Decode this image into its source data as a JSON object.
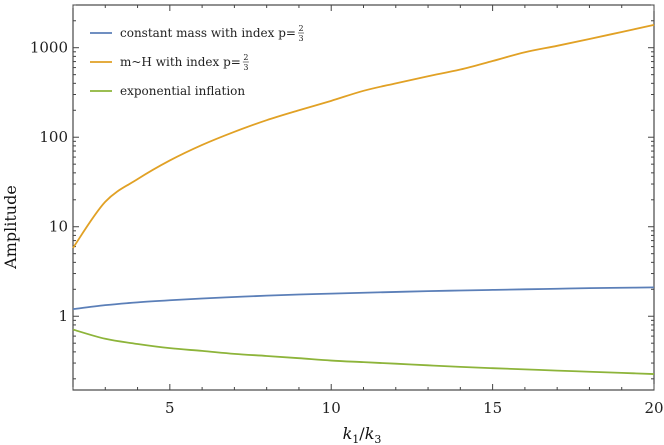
{
  "chart_data": {
    "type": "line",
    "xlabel": "k1/k3",
    "xlabel_parts": {
      "main": "k",
      "sub1": "1",
      "slash": "/",
      "main2": "k",
      "sub2": "3"
    },
    "ylabel": "Amplitude",
    "xlim": [
      2,
      20
    ],
    "ylim": [
      0.15,
      3000
    ],
    "yscale": "log",
    "x_ticks": [
      5,
      10,
      15,
      20
    ],
    "x_tick_labels": [
      "5",
      "10",
      "15",
      "20"
    ],
    "y_ticks": [
      1,
      10,
      100,
      1000
    ],
    "y_tick_labels": [
      "1",
      "10",
      "100",
      "1000"
    ],
    "grid": false,
    "legend_position": "top-left",
    "series": [
      {
        "name": "constant mass with index p=",
        "name_fraction": {
          "num": "2",
          "den": "3"
        },
        "color": "#5b7fb8",
        "x": [
          2,
          3,
          4,
          5,
          6,
          7,
          8,
          9,
          10,
          11,
          12,
          13,
          14,
          15,
          16,
          17,
          18,
          19,
          20
        ],
        "y": [
          1.2,
          1.33,
          1.43,
          1.51,
          1.58,
          1.64,
          1.7,
          1.75,
          1.79,
          1.83,
          1.87,
          1.91,
          1.94,
          1.97,
          2.0,
          2.03,
          2.06,
          2.08,
          2.1
        ]
      },
      {
        "name": "m~H with index p=",
        "name_fraction": {
          "num": "2",
          "den": "3"
        },
        "color": "#e1a125",
        "x": [
          2,
          3,
          4,
          5,
          6,
          7,
          8,
          9,
          10,
          11,
          12,
          13,
          14,
          15,
          16,
          17,
          18,
          19,
          20
        ],
        "y": [
          5.8,
          19,
          34,
          55,
          82,
          115,
          155,
          200,
          255,
          330,
          400,
          480,
          570,
          710,
          890,
          1050,
          1250,
          1500,
          1800
        ]
      },
      {
        "name": "exponential inflation",
        "color": "#8db43a",
        "x": [
          2,
          3,
          4,
          5,
          6,
          7,
          8,
          9,
          10,
          11,
          12,
          13,
          14,
          15,
          16,
          17,
          18,
          19,
          20
        ],
        "y": [
          0.71,
          0.56,
          0.49,
          0.44,
          0.41,
          0.38,
          0.36,
          0.34,
          0.32,
          0.307,
          0.295,
          0.283,
          0.272,
          0.263,
          0.255,
          0.247,
          0.24,
          0.233,
          0.226
        ]
      }
    ]
  }
}
